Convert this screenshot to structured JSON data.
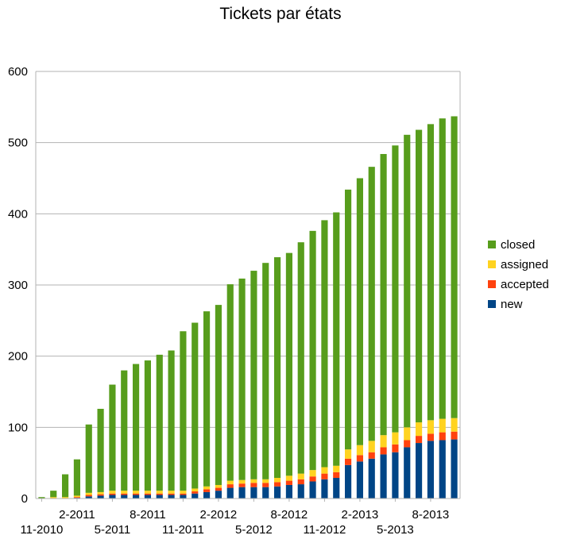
{
  "chart_data": {
    "type": "bar",
    "stacked": true,
    "title": "Tickets par états",
    "xlabel": "",
    "ylabel": "",
    "ylim": [
      0,
      600
    ],
    "yticks": [
      0,
      100,
      200,
      300,
      400,
      500,
      600
    ],
    "grid": true,
    "legend_position": "right",
    "categories": [
      "11-2010",
      "12-2010",
      "1-2011",
      "2-2011",
      "3-2011",
      "4-2011",
      "5-2011",
      "6-2011",
      "7-2011",
      "8-2011",
      "9-2011",
      "10-2011",
      "11-2011",
      "12-2011",
      "1-2012",
      "2-2012",
      "3-2012",
      "4-2012",
      "5-2012",
      "6-2012",
      "7-2012",
      "8-2012",
      "9-2012",
      "10-2012",
      "11-2012",
      "12-2012",
      "1-2013",
      "2-2013",
      "3-2013",
      "4-2013",
      "5-2013",
      "6-2013",
      "7-2013",
      "8-2013",
      "9-2013",
      "10-2013"
    ],
    "x_tick_labels": [
      {
        "index": 0,
        "label": "11-2010",
        "row": 2
      },
      {
        "index": 3,
        "label": "2-2011",
        "row": 1
      },
      {
        "index": 6,
        "label": "5-2011",
        "row": 2
      },
      {
        "index": 9,
        "label": "8-2011",
        "row": 1
      },
      {
        "index": 12,
        "label": "11-2011",
        "row": 2
      },
      {
        "index": 15,
        "label": "2-2012",
        "row": 1
      },
      {
        "index": 18,
        "label": "5-2012",
        "row": 2
      },
      {
        "index": 21,
        "label": "8-2012",
        "row": 1
      },
      {
        "index": 24,
        "label": "11-2012",
        "row": 2
      },
      {
        "index": 27,
        "label": "2-2013",
        "row": 1
      },
      {
        "index": 30,
        "label": "5-2013",
        "row": 2
      },
      {
        "index": 33,
        "label": "8-2013",
        "row": 1
      }
    ],
    "series": [
      {
        "name": "new",
        "color": "#004586",
        "values": [
          0,
          0,
          0,
          1,
          3,
          4,
          5,
          5,
          5,
          5,
          5,
          5,
          5,
          7,
          9,
          11,
          15,
          16,
          16,
          16,
          17,
          19,
          20,
          24,
          27,
          29,
          47,
          52,
          56,
          62,
          65,
          72,
          78,
          81,
          82,
          83
        ]
      },
      {
        "name": "accepted",
        "color": "#ff420e",
        "values": [
          0,
          0,
          0,
          1,
          2,
          2,
          2,
          2,
          2,
          2,
          2,
          2,
          2,
          3,
          4,
          4,
          5,
          5,
          6,
          6,
          6,
          6,
          7,
          7,
          8,
          8,
          9,
          9,
          9,
          10,
          11,
          10,
          10,
          10,
          11,
          11
        ]
      },
      {
        "name": "assigned",
        "color": "#ffd320",
        "values": [
          0,
          2,
          2,
          2,
          3,
          3,
          4,
          4,
          4,
          4,
          4,
          4,
          4,
          4,
          4,
          4,
          5,
          5,
          5,
          5,
          6,
          7,
          8,
          9,
          9,
          9,
          13,
          14,
          16,
          17,
          17,
          18,
          19,
          19,
          19,
          19
        ]
      },
      {
        "name": "closed",
        "color": "#579d1c",
        "values": [
          2,
          9,
          32,
          51,
          96,
          117,
          149,
          169,
          178,
          183,
          191,
          197,
          224,
          233,
          246,
          253,
          276,
          283,
          293,
          304,
          310,
          313,
          325,
          336,
          347,
          356,
          365,
          375,
          385,
          395,
          403,
          411,
          411,
          416,
          422,
          424
        ]
      }
    ]
  }
}
